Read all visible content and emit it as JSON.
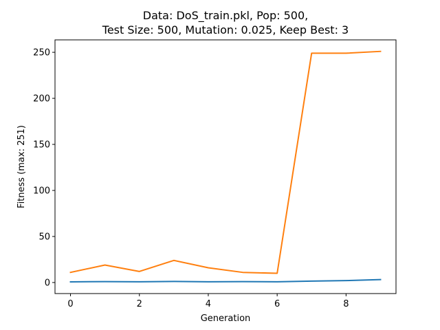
{
  "chart_data": {
    "type": "line",
    "title_line1": "Data: DoS_train.pkl, Pop: 500,",
    "title_line2": "Test Size: 500, Mutation: 0.025, Keep Best: 3",
    "xlabel": "Generation",
    "ylabel": "Fitness (max: 251)",
    "xlim": [
      -0.45,
      9.45
    ],
    "ylim": [
      -12,
      263.5
    ],
    "xticks": [
      0,
      2,
      4,
      6,
      8
    ],
    "yticks": [
      0,
      50,
      100,
      150,
      200,
      250
    ],
    "x": [
      0,
      1,
      2,
      3,
      4,
      5,
      6,
      7,
      8,
      9
    ],
    "series": [
      {
        "color": "#1f77b4",
        "values": [
          0.7,
          1.0,
          0.8,
          1.2,
          0.8,
          1.0,
          0.8,
          1.5,
          2.1,
          3.2
        ]
      },
      {
        "color": "#ff7f0e",
        "values": [
          11,
          19,
          12,
          24,
          16,
          11,
          10,
          249,
          249,
          251
        ]
      }
    ],
    "grid": false,
    "legend": "none"
  }
}
